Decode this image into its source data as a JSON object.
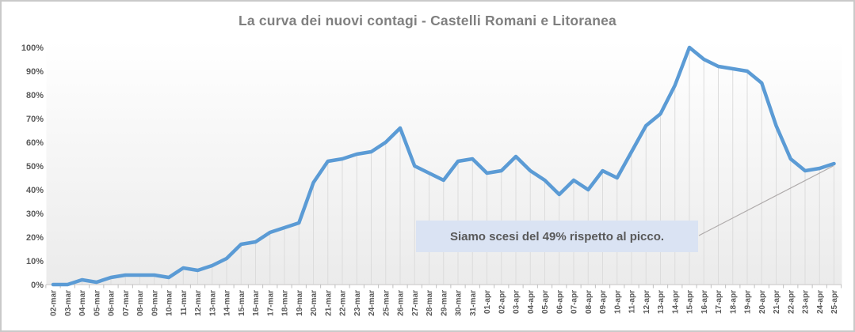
{
  "chart_data": {
    "type": "line",
    "title": "La curva dei nuovi contagi - Castelli Romani e Litoranea",
    "categories": [
      "02-mar",
      "03-mar",
      "04-mar",
      "05-mar",
      "06-mar",
      "07-mar",
      "08-mar",
      "09-mar",
      "10-mar",
      "11-mar",
      "12-mar",
      "13-mar",
      "14-mar",
      "15-mar",
      "16-mar",
      "17-mar",
      "18-mar",
      "19-mar",
      "20-mar",
      "21-mar",
      "22-mar",
      "23-mar",
      "24-mar",
      "25-mar",
      "26-mar",
      "27-mar",
      "28-mar",
      "29-mar",
      "30-mar",
      "31-mar",
      "01-apr",
      "02-apr",
      "03-apr",
      "04-apr",
      "05-apr",
      "06-apr",
      "07-apr",
      "08-apr",
      "09-apr",
      "10-apr",
      "11-apr",
      "12-apr",
      "13-apr",
      "14-apr",
      "15-apr",
      "16-apr",
      "17-apr",
      "18-apr",
      "19-apr",
      "20-apr",
      "21-apr",
      "22-apr",
      "23-apr",
      "24-apr",
      "25-apr"
    ],
    "values": [
      0,
      0,
      2,
      1,
      3,
      4,
      4,
      4,
      3,
      7,
      6,
      8,
      11,
      17,
      18,
      22,
      24,
      26,
      43,
      52,
      53,
      55,
      56,
      60,
      66,
      50,
      47,
      44,
      52,
      53,
      47,
      48,
      54,
      48,
      44,
      38,
      44,
      40,
      48,
      45,
      56,
      67,
      72,
      84,
      100,
      95,
      92,
      91,
      90,
      85,
      67,
      53,
      48,
      49,
      51
    ],
    "y_ticks": [
      {
        "label": "0%",
        "value": 0
      },
      {
        "label": "10%",
        "value": 10
      },
      {
        "label": "20%",
        "value": 20
      },
      {
        "label": "30%",
        "value": 30
      },
      {
        "label": "40%",
        "value": 40
      },
      {
        "label": "50%",
        "value": 50
      },
      {
        "label": "60%",
        "value": 60
      },
      {
        "label": "70%",
        "value": 70
      },
      {
        "label": "80%",
        "value": 80
      },
      {
        "label": "90%",
        "value": 90
      },
      {
        "label": "100%",
        "value": 100
      }
    ],
    "ylim": [
      0,
      100
    ],
    "xlabel": "",
    "ylabel": "",
    "legend": "none",
    "grid": "vertical drop lines from each point to x-axis",
    "x_label_rotation": "90deg counterclockwise, reading bottom to top",
    "annotation": {
      "text": "Siamo scesi del 49% rispetto al picco.",
      "points_to_category": "25-apr"
    },
    "colors": {
      "line": "#5B9BD5",
      "annotation_bg": "#DAE3F3",
      "annotation_text": "#595959",
      "title_text": "#7F7F7F",
      "axis_text": "#595959",
      "drop_line": "#DCDCDC",
      "axis_line": "#D0CECE",
      "tick_mark": "#BFBFBF",
      "plot_bg_top": "#FFFFFF",
      "plot_bg_bottom": "#EBEBEB",
      "leader_line": "#AFABAB",
      "frame_border": "#C9C9C9"
    }
  }
}
